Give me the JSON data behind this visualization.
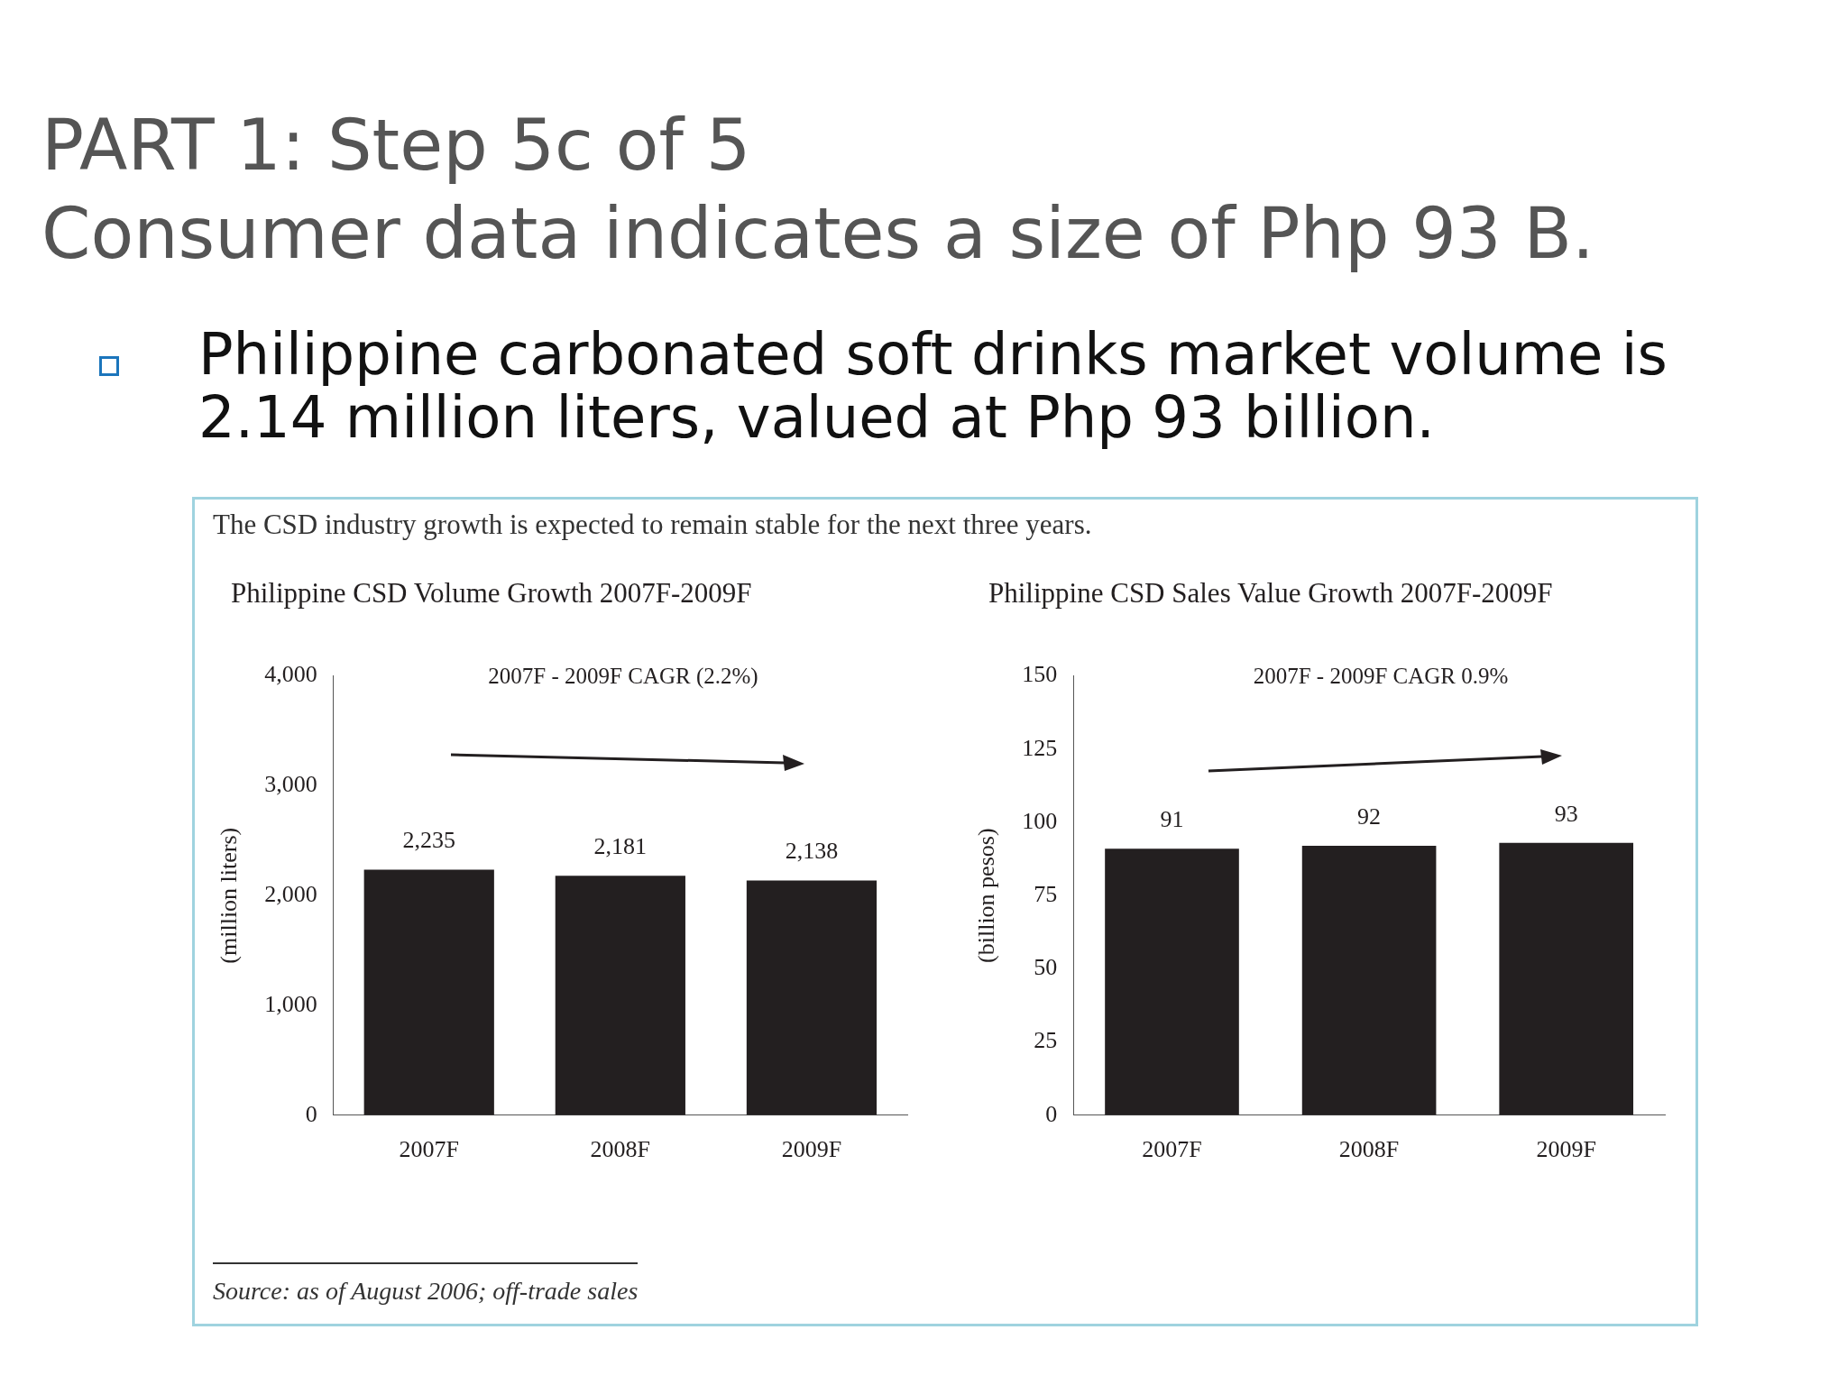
{
  "chart_data": [
    {
      "type": "bar",
      "title": "Philippine CSD Volume Growth 2007F-2009F",
      "ylabel": "(million liters)",
      "categories": [
        "2007F",
        "2008F",
        "2009F"
      ],
      "values": [
        2235,
        2181,
        2138
      ],
      "color": "#231f20",
      "ylim": [
        0,
        4000
      ],
      "yticks": [
        0,
        {
          "value": 1000,
          "label": "1,000"
        },
        {
          "value": 2000,
          "label": "2,000"
        },
        {
          "value": 3000,
          "label": "3,000"
        },
        {
          "value": 4000,
          "label": "4,000"
        }
      ],
      "value_labels": [
        "2,235",
        "2,181",
        "2,138"
      ],
      "grid": false,
      "legend": false,
      "annotations": [
        "PART 1: Step 5c of 5",
        "Consumer data indicates a size of Php 93 B.",
        "Philippine carbonated soft drinks market volume is 2.14 million liters, valued at Php 93 billion.",
        "The CSD industry growth is expected to remain stable for the next three years.",
        "2007F - 2009F CAGR (2.2%)",
        "Source:   as of August 2006; off-trade sales"
      ]
    },
    {
      "type": "bar",
      "title": "Philippine CSD Sales Value Growth 2007F-2009F",
      "ylabel": "(billion pesos)",
      "categories": [
        "2007F",
        "2008F",
        "2009F"
      ],
      "values": [
        91,
        92,
        93
      ],
      "color": "#231f20",
      "ylim": [
        0,
        150
      ],
      "yticks": [
        0,
        25,
        50,
        75,
        100,
        125,
        150
      ],
      "data_labels": true,
      "grid": false,
      "legend": false,
      "annotations": [
        "2007F - 2009F CAGR 0.9%"
      ]
    }
  ]
}
